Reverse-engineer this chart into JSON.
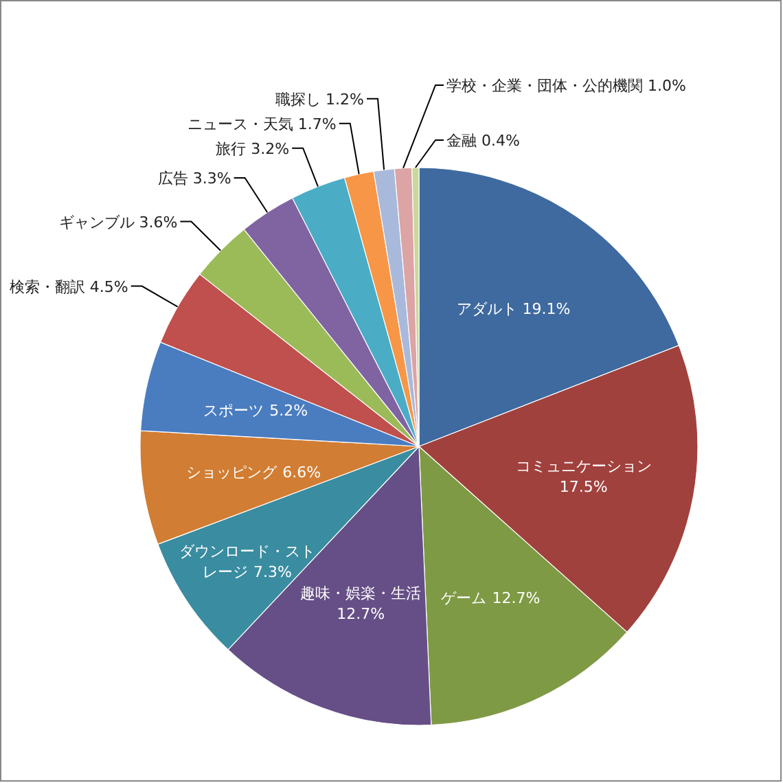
{
  "chart_data": {
    "type": "pie",
    "categories": [
      "アダルト",
      "コミュニケーション",
      "ゲーム",
      "趣味・娯楽・生活",
      "ダウンロード・ストレージ",
      "ショッピング",
      "スポーツ",
      "検索・翻訳",
      "ギャンブル",
      "広告",
      "旅行",
      "ニュース・天気",
      "職探し",
      "学校・企業・団体・公的機関",
      "金融"
    ],
    "values": [
      19.1,
      17.5,
      12.7,
      12.7,
      7.3,
      6.6,
      5.2,
      4.5,
      3.6,
      3.3,
      3.2,
      1.7,
      1.2,
      1.0,
      0.4
    ],
    "value_labels": [
      "19.1%",
      "17.5%",
      "12.7%",
      "12.7%",
      "7.3%",
      "6.6%",
      "5.2%",
      "4.5%",
      "3.6%",
      "3.3%",
      "3.2%",
      "1.7%",
      "1.2%",
      "1.0%",
      "0.4%"
    ],
    "colors": [
      "#3f6a9f",
      "#a1413d",
      "#7f9a45",
      "#664f86",
      "#3a8ca0",
      "#d17d33",
      "#4a7cc0",
      "#c0504d",
      "#9bbb59",
      "#8064a2",
      "#4bacc6",
      "#f79646",
      "#a9b9dc",
      "#dca4a4",
      "#c8d89c"
    ]
  }
}
